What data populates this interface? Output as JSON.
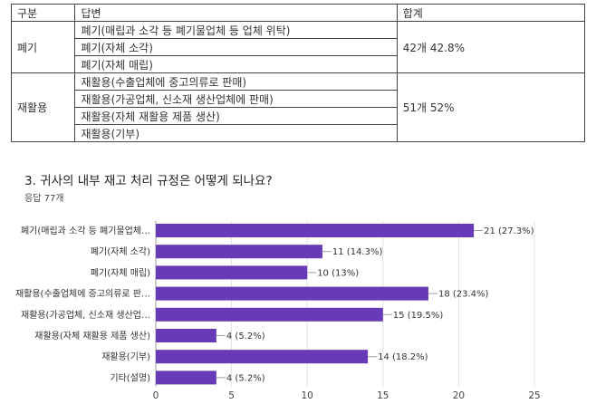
{
  "table": {
    "headers": [
      "구분",
      "답변",
      "합계"
    ],
    "groups": [
      {
        "category": "폐기",
        "answers": [
          "폐기(매립과 소각 등 폐기물업체 등 업체 위탁)",
          "폐기(자체 소각)",
          "폐기(자체 매립)"
        ],
        "total": "42개 42.8%"
      },
      {
        "category": "재활용",
        "answers": [
          "재활용(수출업체에 중고의류로 판매)",
          "재활용(가공업체, 신소재 생산업체에 판매)",
          "재활용(자체 재활용 제품 생산)",
          "재활용(기부)"
        ],
        "total": "51개 52%"
      }
    ]
  },
  "question": {
    "title": "3. 귀사의 내부 재고 처리 규정은 어떻게 되나요?",
    "responses": "응답 77개"
  },
  "chart_data": {
    "type": "bar",
    "orientation": "horizontal",
    "categories": [
      "폐기(매립과 소각 등 폐기물업체…",
      "폐기(자체 소각)",
      "폐기(자체 매립)",
      "재활용(수출업체에 중고의류로 판…",
      "재활용(가공업체, 신소재 생산업…",
      "재활용(자체 재활용 제품 생산)",
      "재활용(기부)",
      "기타(설명)"
    ],
    "values": [
      21,
      11,
      10,
      18,
      15,
      4,
      14,
      4
    ],
    "value_labels": [
      "21 (27.3%)",
      "11 (14.3%)",
      "10 (13%)",
      "18 (23.4%)",
      "15 (19.5%)",
      "4 (5.2%)",
      "14 (18.2%)",
      "4 (5.2%)"
    ],
    "xticks": [
      "0",
      "5",
      "10",
      "15",
      "20",
      "25"
    ],
    "xlim": [
      0,
      25
    ],
    "bar_color": "#673ab7",
    "grid": true
  }
}
